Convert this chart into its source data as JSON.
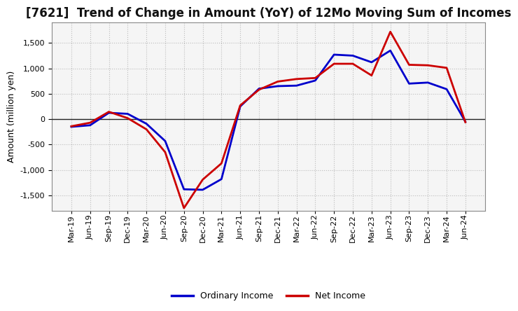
{
  "title": "[7621]  Trend of Change in Amount (YoY) of 12Mo Moving Sum of Incomes",
  "ylabel": "Amount (million yen)",
  "ylim": [
    -1800,
    1900
  ],
  "yticks": [
    -1500,
    -1000,
    -500,
    0,
    500,
    1000,
    1500
  ],
  "background_color": "#FFFFFF",
  "plot_bg_color": "#F5F5F5",
  "grid_color": "#BBBBBB",
  "x_labels": [
    "Mar-19",
    "Jun-19",
    "Sep-19",
    "Dec-19",
    "Mar-20",
    "Jun-20",
    "Sep-20",
    "Dec-20",
    "Mar-21",
    "Jun-21",
    "Sep-21",
    "Dec-21",
    "Mar-22",
    "Jun-22",
    "Sep-22",
    "Dec-22",
    "Mar-23",
    "Jun-23",
    "Sep-23",
    "Dec-23",
    "Mar-24",
    "Jun-24"
  ],
  "ordinary_income": [
    -150,
    -120,
    125,
    105,
    -90,
    -430,
    -1380,
    -1390,
    -1180,
    250,
    600,
    650,
    660,
    760,
    1270,
    1250,
    1120,
    1350,
    700,
    720,
    590,
    -50
  ],
  "net_income": [
    -140,
    -70,
    145,
    20,
    -200,
    -650,
    -1750,
    -1190,
    -870,
    270,
    580,
    740,
    790,
    810,
    1090,
    1090,
    860,
    1720,
    1070,
    1060,
    1010,
    -60
  ],
  "ordinary_color": "#0000CC",
  "net_color": "#CC0000",
  "line_width": 2.0,
  "legend_ordinary": "Ordinary Income",
  "legend_net": "Net Income",
  "zero_line_color": "#222222",
  "spine_color": "#888888",
  "title_fontsize": 12,
  "ylabel_fontsize": 9,
  "tick_fontsize": 8,
  "legend_fontsize": 9
}
